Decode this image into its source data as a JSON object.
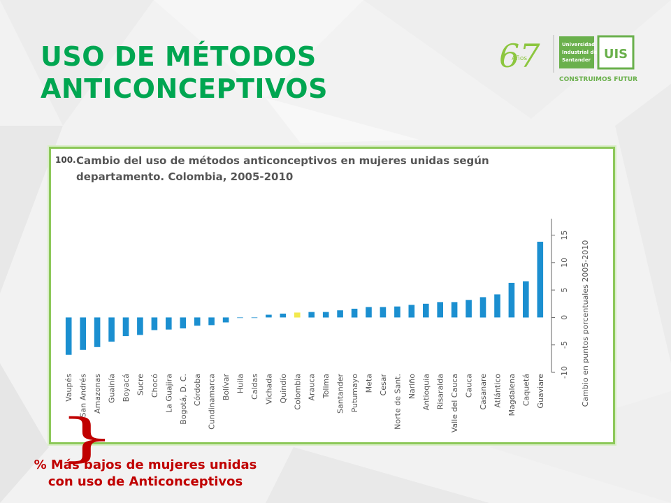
{
  "title": {
    "line1": "USO DE MÉTODOS",
    "line2": "ANTICONCEPTIVOS"
  },
  "logo": {
    "anniversary_number": "67",
    "anniversary_word": "Años",
    "university_line1": "Universidad",
    "university_line2": "Industrial de",
    "university_line3": "Santander",
    "abbr": "UIS",
    "slogan": "CONSTRUIMOS FUTURO"
  },
  "note": {
    "brace": "}",
    "line1": "% Más bajos  de mujeres unidas",
    "line2": "con uso de Anticonceptivos"
  },
  "colors": {
    "green": "#00a651",
    "red": "#c00000",
    "bar_blue": "#1b8fd0",
    "bar_highlight": "#f2e94e",
    "frame": "#8dc85a"
  },
  "chart_data": {
    "type": "bar",
    "figure_number": "100.",
    "title_line1": "Cambio del uso de métodos anticonceptivos en mujeres unidas según",
    "title_line2": "departamento. Colombia, 2005-2010",
    "ylabel": "Cambio en puntos porcentuales 2005-2010",
    "ylim": [
      -10,
      18
    ],
    "yticks": [
      -10,
      -5,
      0,
      5,
      10,
      15
    ],
    "grid": false,
    "highlight_category": "Colombia",
    "categories": [
      "Vaupés",
      "San Andrés",
      "Amazonas",
      "Guainía",
      "Boyacá",
      "Sucre",
      "Chocó",
      "La Guajira",
      "Bogotá, D. C.",
      "Córdoba",
      "Cundinamarca",
      "Bolívar",
      "Huila",
      "Caldas",
      "Vichada",
      "Quindío",
      "Colombia",
      "Arauca",
      "Tolima",
      "Santander",
      "Putumayo",
      "Meta",
      "Cesar",
      "Norte de Sant.",
      "Nariño",
      "Antioquia",
      "Risaralda",
      "Valle del Cauca",
      "Cauca",
      "Casanare",
      "Atlántico",
      "Magdalena",
      "Caquetá",
      "Guaviare"
    ],
    "values": [
      -6.8,
      -5.9,
      -5.4,
      -4.4,
      -3.4,
      -3.2,
      -2.3,
      -2.2,
      -2.0,
      -1.5,
      -1.4,
      -0.9,
      0.0,
      0.0,
      0.5,
      0.7,
      0.9,
      1.0,
      1.0,
      1.3,
      1.6,
      1.9,
      1.9,
      2.0,
      2.3,
      2.5,
      2.8,
      2.8,
      3.2,
      3.7,
      4.2,
      6.3,
      6.6,
      13.8
    ]
  }
}
